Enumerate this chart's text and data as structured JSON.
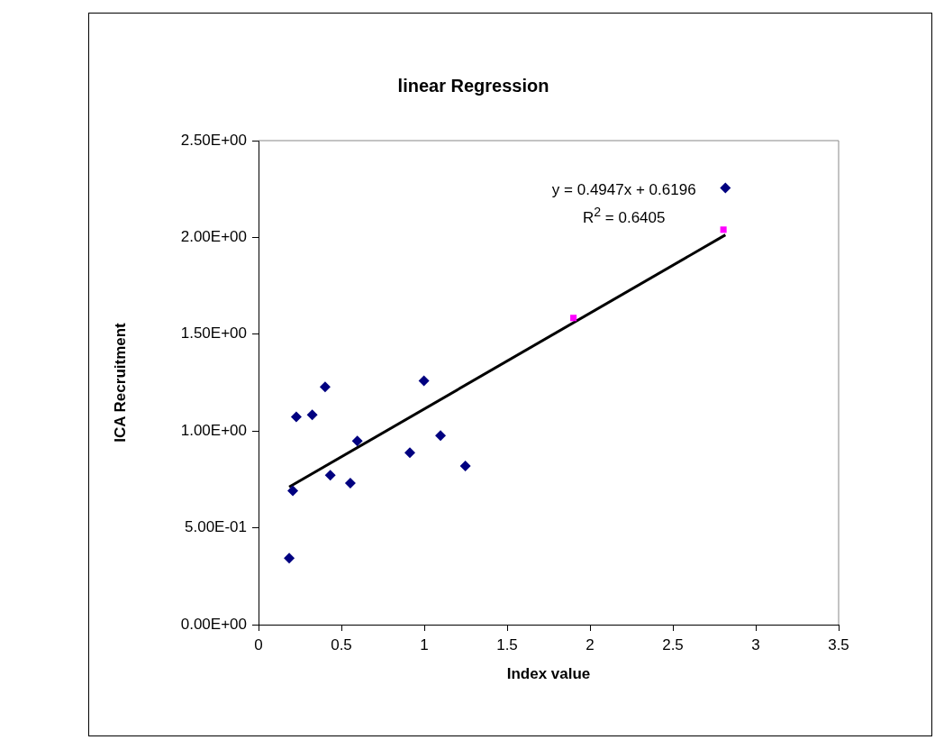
{
  "chart_data": {
    "type": "scatter",
    "title": "linear Regression",
    "xlabel": "Index value",
    "ylabel": "ICA Recruitment",
    "xlim": [
      0,
      3.5
    ],
    "xticks": [
      0,
      0.5,
      1,
      1.5,
      2,
      2.5,
      3,
      3.5
    ],
    "ylim": [
      0,
      2.5
    ],
    "yticks": [
      {
        "value": 0,
        "label": "0.00E+00"
      },
      {
        "value": 0.5,
        "label": "5.00E-01"
      },
      {
        "value": 1,
        "label": "1.00E+00"
      },
      {
        "value": 1.5,
        "label": "1.50E+00"
      },
      {
        "value": 2,
        "label": "2.00E+00"
      },
      {
        "value": 2.5,
        "label": "2.50E+00"
      }
    ],
    "grid": false,
    "legend": false,
    "series": [
      {
        "color": "#000080",
        "marker": "diamond",
        "x": [
          0.185,
          0.207,
          0.228,
          0.324,
          0.402,
          0.433,
          0.554,
          0.596,
          0.913,
          0.998,
          1.098,
          1.248,
          2.817
        ],
        "values": [
          0.343,
          0.691,
          1.073,
          1.083,
          1.228,
          0.772,
          0.731,
          0.948,
          0.888,
          1.259,
          0.976,
          0.819,
          2.256
        ]
      },
      {
        "color": "#ff00ff",
        "marker": "square",
        "x": [
          1.9,
          2.805
        ],
        "values": [
          1.584,
          2.04
        ]
      },
      {
        "type": "line",
        "color": "#000000",
        "marker": "none",
        "x": [
          0.185,
          2.817
        ],
        "values": [
          0.711,
          2.013
        ]
      }
    ],
    "annotations": [
      "y = 0.4947x + 0.6196",
      "R$^{2}$ = 0.6405"
    ]
  }
}
